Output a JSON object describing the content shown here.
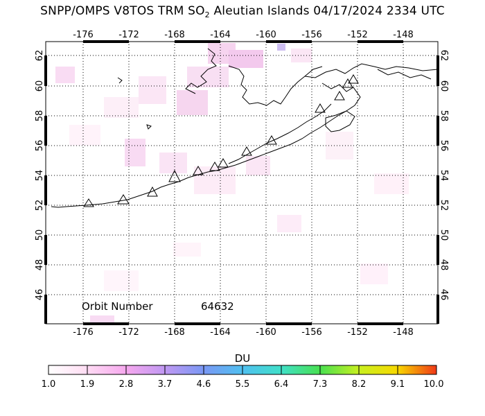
{
  "title": {
    "prefix": "SNPP/OMPS V8TOS TRM SO",
    "subscript": "2",
    "suffix": " Aleutian Islands 04/17/2024 2334 UTC"
  },
  "map": {
    "lon_labels": [
      "-176",
      "-172",
      "-168",
      "-164",
      "-160",
      "-156",
      "-152",
      "-148"
    ],
    "lat_labels": [
      "62",
      "60",
      "58",
      "56",
      "54",
      "52",
      "50",
      "48",
      "46"
    ],
    "orbit_label": "Orbit Number",
    "orbit_number": "64632"
  },
  "colorbar": {
    "unit": "DU",
    "tick_labels": [
      "1.0",
      "1.9",
      "2.8",
      "3.7",
      "4.6",
      "5.5",
      "6.4",
      "7.3",
      "8.2",
      "9.1",
      "10.0"
    ],
    "colors": [
      "#ffffff",
      "#ffd6f0",
      "#f0a0f0",
      "#b090f0",
      "#6090f0",
      "#40c0f0",
      "#40e0c0",
      "#40e040",
      "#c0f020",
      "#f0e000",
      "#f08000",
      "#f03000"
    ]
  },
  "volcano_icon": "triangle-icon"
}
